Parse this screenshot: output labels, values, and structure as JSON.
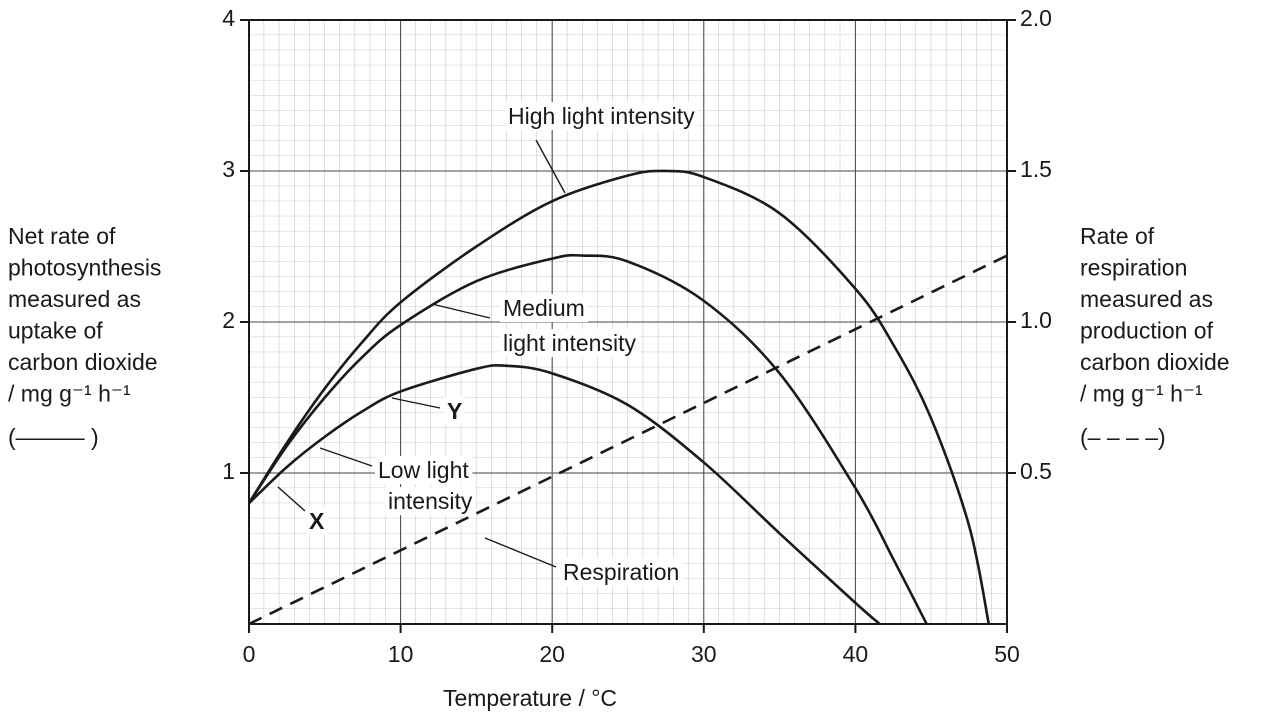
{
  "chart_data": {
    "type": "line",
    "x_label": "Temperature / °C",
    "y_label": [
      "Net rate of",
      "photosynthesis",
      "measured as",
      "uptake of",
      "carbon dioxide",
      "/ mg g⁻¹ h⁻¹",
      "(——— )"
    ],
    "y2_label": [
      "Rate of",
      "respiration",
      "measured as",
      "production of",
      "carbon dioxide",
      "/ mg g⁻¹ h⁻¹",
      "(– – – –)"
    ],
    "xlim": [
      0,
      50
    ],
    "xticks": [
      0,
      10,
      20,
      30,
      40,
      50
    ],
    "ylim": [
      0,
      4
    ],
    "yticks": [
      1,
      2,
      3,
      4
    ],
    "y2lim": [
      0,
      2
    ],
    "y2ticks": [
      0.5,
      {
        "value": 1,
        "label": "1.0"
      },
      1.5,
      {
        "value": 2,
        "label": "2.0"
      }
    ],
    "grid": true,
    "series": [
      {
        "name": "High light intensity",
        "color": "#1a1a1a",
        "style": "solid",
        "x": [
          0,
          2.5,
          5,
          7.5,
          10,
          15,
          20,
          25,
          27.5,
          30,
          35,
          40,
          42.5,
          45,
          47.5,
          48.8
        ],
        "values": [
          0.8,
          1.2,
          1.56,
          1.87,
          2.13,
          2.5,
          2.8,
          2.97,
          3.0,
          2.96,
          2.72,
          2.22,
          1.85,
          1.36,
          0.65,
          0
        ]
      },
      {
        "name": "Medium light intensity",
        "color": "#1a1a1a",
        "style": "solid",
        "x": [
          0,
          2.5,
          5,
          7.5,
          10,
          15,
          20,
          22,
          25,
          30,
          35,
          40,
          42.5,
          44.7
        ],
        "values": [
          0.8,
          1.18,
          1.5,
          1.77,
          1.98,
          2.27,
          2.42,
          2.44,
          2.4,
          2.14,
          1.66,
          0.9,
          0.43,
          0
        ]
      },
      {
        "name": "Low light intensity",
        "color": "#1a1a1a",
        "style": "solid",
        "x": [
          0,
          2.5,
          5,
          7.5,
          10,
          15,
          17,
          20,
          25,
          30,
          35,
          40,
          41.6
        ],
        "values": [
          0.8,
          1.04,
          1.24,
          1.41,
          1.54,
          1.69,
          1.71,
          1.66,
          1.45,
          1.07,
          0.6,
          0.14,
          0
        ]
      },
      {
        "name": "Respiration",
        "color": "#1a1a1a",
        "style": "dashed",
        "axis": "y2",
        "x": [
          0,
          50
        ],
        "values": [
          0,
          1.22
        ]
      }
    ],
    "annotations": [
      "High light intensity",
      "Medium",
      "light intensity",
      "Y",
      "Low light",
      "intensity",
      "X",
      "Respiration"
    ]
  }
}
